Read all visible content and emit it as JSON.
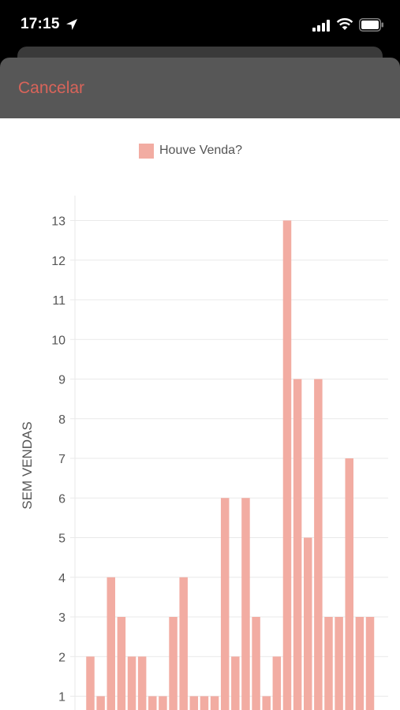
{
  "status": {
    "time": "17:15"
  },
  "header": {
    "cancel_label": "Cancelar"
  },
  "colors": {
    "bar": "#f2aca2",
    "accent": "#d9645a",
    "grid": "#e9e9e9"
  },
  "chart_data": {
    "type": "bar",
    "title": "",
    "xlabel": "",
    "ylabel": "SEM VENDAS",
    "ylim": [
      1,
      13
    ],
    "yticks": [
      1,
      2,
      3,
      4,
      5,
      6,
      7,
      8,
      9,
      10,
      11,
      12,
      13
    ],
    "grid": true,
    "legend_position": "top-center",
    "series": [
      {
        "name": "Houve Venda?",
        "values": [
          2,
          1,
          4,
          3,
          2,
          2,
          1,
          1,
          3,
          4,
          1,
          1,
          1,
          6,
          2,
          6,
          3,
          1,
          2,
          13,
          9,
          5,
          9,
          3,
          3,
          7,
          3,
          3
        ]
      }
    ]
  }
}
